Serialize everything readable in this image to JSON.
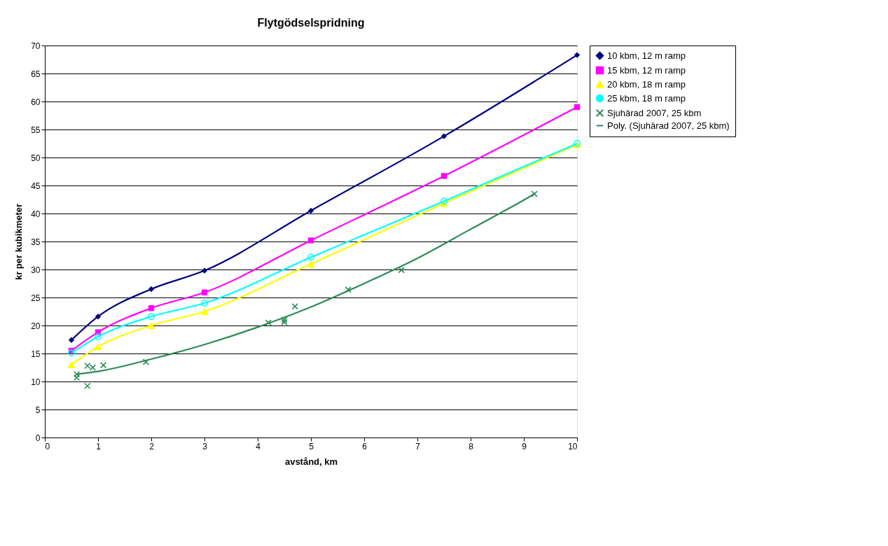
{
  "chart_data": {
    "type": "line",
    "title": "Flytgödselspridning",
    "xlabel": "avstånd, km",
    "ylabel": "kr per kubikmeter",
    "xlim": [
      0,
      10
    ],
    "xticks": [
      0,
      1,
      2,
      3,
      4,
      5,
      6,
      7,
      8,
      9,
      10
    ],
    "ylim": [
      0,
      70
    ],
    "yticks": [
      0,
      5,
      10,
      15,
      20,
      25,
      30,
      35,
      40,
      45,
      50,
      55,
      60,
      65,
      70
    ],
    "grid": "y",
    "legend": "right",
    "line_style": "solid",
    "series": [
      {
        "name": "10 kbm, 12 m ramp",
        "color": "#000080",
        "marker": "diamond",
        "x": [
          0.5,
          1,
          2,
          3,
          5,
          7.5,
          10
        ],
        "values": [
          17.4,
          21.6,
          26.5,
          29.8,
          40.5,
          53.8,
          68.3
        ]
      },
      {
        "name": "15 kbm, 12 m ramp",
        "color": "#ff00ff",
        "marker": "square",
        "x": [
          0.5,
          1,
          2,
          3,
          5,
          7.5,
          10
        ],
        "values": [
          15.5,
          18.8,
          23.1,
          25.9,
          35.2,
          46.7,
          59.0
        ]
      },
      {
        "name": "20 kbm, 18 m ramp",
        "color": "#ffff00",
        "marker": "triangle",
        "x": [
          0.5,
          1,
          2,
          3,
          5,
          7.5,
          10
        ],
        "values": [
          13.0,
          16.2,
          20.0,
          22.5,
          31.0,
          41.8,
          52.3
        ]
      },
      {
        "name": "25 kbm, 18 m ramp",
        "color": "#00ffff",
        "marker": "circle",
        "x": [
          0.5,
          1,
          2,
          3,
          5,
          7.5,
          10
        ],
        "values": [
          15.1,
          18.0,
          21.6,
          24.0,
          32.2,
          42.2,
          52.5
        ]
      },
      {
        "name": "Sjuhärad 2007, 25 kbm",
        "type": "scatter",
        "color": "#2e8b57",
        "marker": "cross",
        "x": [
          0.6,
          0.6,
          0.8,
          0.9,
          1.1,
          0.8,
          1.9,
          4.2,
          4.5,
          4.5,
          4.7,
          5.7,
          6.7,
          9.2
        ],
        "values": [
          11.3,
          10.7,
          12.8,
          12.5,
          12.9,
          9.2,
          13.5,
          20.5,
          20.6,
          21.0,
          23.4,
          26.4,
          29.9,
          43.5
        ]
      },
      {
        "name": "Poly. (Sjuhärad 2007, 25 kbm)",
        "color": "#2e8b57",
        "marker": "none",
        "x": [
          0.6,
          1,
          2,
          3,
          4,
          5,
          6,
          7,
          8,
          9,
          9.2
        ],
        "values": [
          11.3,
          11.8,
          14.0,
          16.6,
          19.7,
          23.3,
          27.5,
          32.0,
          37.2,
          42.4,
          43.5
        ]
      }
    ]
  }
}
